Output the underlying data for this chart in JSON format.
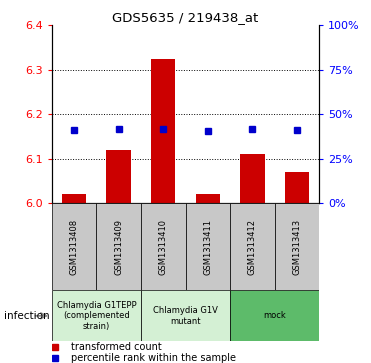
{
  "title": "GDS5635 / 219438_at",
  "samples": [
    "GSM1313408",
    "GSM1313409",
    "GSM1313410",
    "GSM1313411",
    "GSM1313412",
    "GSM1313413"
  ],
  "red_values": [
    6.02,
    6.12,
    6.325,
    6.02,
    6.11,
    6.07
  ],
  "blue_values": [
    6.165,
    6.168,
    6.168,
    6.163,
    6.167,
    6.164
  ],
  "ylim_left": [
    6.0,
    6.4
  ],
  "yticks_left": [
    6.0,
    6.1,
    6.2,
    6.3,
    6.4
  ],
  "yticks_right_vals": [
    0,
    25,
    50,
    75,
    100
  ],
  "bar_color": "#cc0000",
  "dot_color": "#0000cc",
  "bar_width": 0.55,
  "sample_box_color": "#c8c8c8",
  "group1_color": "#d4f0d4",
  "group2_color": "#5dbb6a",
  "infection_label": "infection",
  "legend_red_label": "transformed count",
  "legend_blue_label": "percentile rank within the sample",
  "groups": [
    {
      "label": "Chlamydia G1TEPP\n(complemented\nstrain)",
      "color": "#d4f0d4",
      "start": 0,
      "end": 1
    },
    {
      "label": "Chlamydia G1V\nmutant",
      "color": "#d4f0d4",
      "start": 2,
      "end": 3
    },
    {
      "label": "mock",
      "color": "#5dbb6a",
      "start": 4,
      "end": 5
    }
  ]
}
